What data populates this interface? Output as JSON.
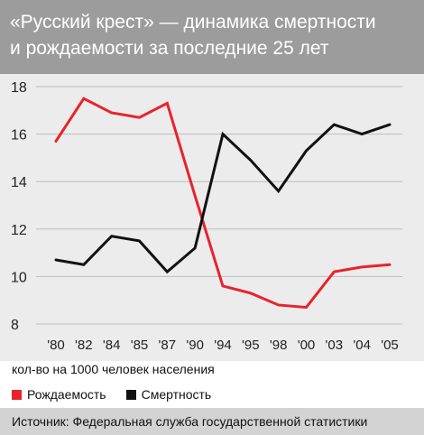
{
  "header": {
    "title_line1": "«Русский крест» — динамика смертности",
    "title_line2": "и рождаемости за последние 25 лет"
  },
  "units_note": "кол-во на 1000 человек населения",
  "source": "Источник: Федеральная служба государственной статистики",
  "colors": {
    "header_bg": "#9c9c9c",
    "plot_bg": "#ececec",
    "births": "#e8232a",
    "deaths": "#111111"
  },
  "chart_data": {
    "type": "line",
    "categories": [
      "'80",
      "'82",
      "'84",
      "'85",
      "'87",
      "'90",
      "'94",
      "'95",
      "'98",
      "'00",
      "'03",
      "'04",
      "'05"
    ],
    "series": [
      {
        "name": "Рождаемость",
        "color": "#e8232a",
        "values": [
          15.7,
          17.5,
          16.9,
          16.7,
          17.3,
          13.4,
          9.6,
          9.3,
          8.8,
          8.7,
          10.2,
          10.4,
          10.5
        ]
      },
      {
        "name": "Смертность",
        "color": "#111111",
        "values": [
          10.7,
          10.5,
          11.7,
          11.5,
          10.2,
          11.2,
          16.0,
          14.9,
          13.6,
          15.3,
          16.4,
          16.0,
          16.4
        ]
      }
    ],
    "yticks": [
      8,
      10,
      12,
      14,
      16,
      18
    ],
    "ylim": [
      8,
      18
    ],
    "grid": true
  }
}
